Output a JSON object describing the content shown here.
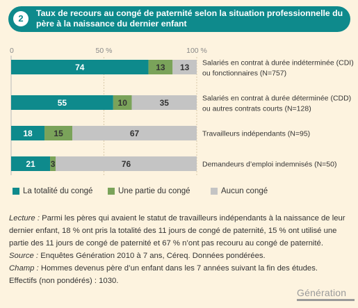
{
  "badge": "2",
  "title": "Taux de recours au congé de paternité selon la situation professionnelle du père à la naissance du dernier enfant",
  "legend": [
    {
      "label": "La totalité du congé",
      "color": "#0e8a8c"
    },
    {
      "label": "Une partie du congé",
      "color": "#7aa35a"
    },
    {
      "label": "Aucun congé",
      "color": "#c4c4c4"
    }
  ],
  "notes": {
    "lecture_label": "Lecture :",
    "lecture_text": " Parmi les pères qui avaient le statut de travailleurs indépendants à la naissance de leur dernier enfant, 18 % ont pris la totalité des 11 jours de congé de paternité, 15 % ont utilisé une partie des 11 jours de congé de paternité et 67 % n’ont pas recouru au congé de paternité.",
    "source_label": "Source :",
    "source_text": " Enquêtes Génération 2010 à 7 ans, Céreq. Données pondérées.",
    "champ_label": "Champ :",
    "champ_text": " Hommes devenus père d’un enfant dans les 7 années suivant la fin des études.",
    "effectifs": "Effectifs (non pondérés) : 1030."
  },
  "logo": "Génération",
  "chart_data": {
    "type": "bar",
    "orientation": "horizontal",
    "stacked": true,
    "ticks": [
      "0",
      "50 %",
      "100 %"
    ],
    "xlim": [
      0,
      100
    ],
    "categories": [
      [
        "Salariés en contrat à durée indéterminée (CDI)",
        "ou fonctionnaires (N=757)"
      ],
      [
        "Salariés en contrat à durée déterminée (CDD)",
        "ou autres contrats courts (N=128)"
      ],
      [
        "Travailleurs indépendants (N=95)"
      ],
      [
        "Demandeurs d’emploi indemnisés (N=50)"
      ]
    ],
    "series": [
      {
        "name": "La totalité du congé",
        "values": [
          74,
          55,
          18,
          21
        ],
        "color": "#0e8a8c"
      },
      {
        "name": "Une partie du congé",
        "values": [
          13,
          10,
          15,
          3
        ],
        "color": "#7aa35a"
      },
      {
        "name": "Aucun congé",
        "values": [
          13,
          35,
          67,
          76
        ],
        "color": "#c4c4c4"
      }
    ]
  }
}
